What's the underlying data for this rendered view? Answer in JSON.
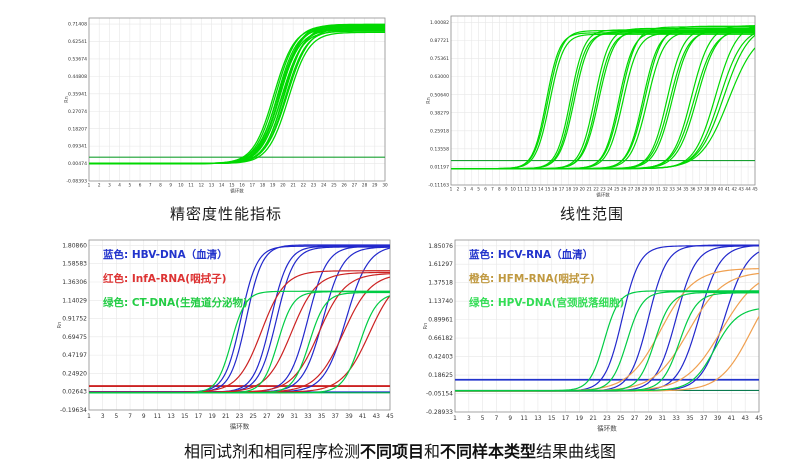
{
  "figure": {
    "caption_parts": [
      {
        "text": "相同试剂和相同程序检测",
        "bold": false
      },
      {
        "text": "不同项目",
        "bold": true
      },
      {
        "text": "和",
        "bold": false
      },
      {
        "text": "不同样本类型",
        "bold": true
      },
      {
        "text": "结果曲线图",
        "bold": false
      }
    ]
  },
  "chart_data": [
    {
      "type": "line",
      "title": "精密度性能指标",
      "x_label": "循环数",
      "y_label": "Rn",
      "xlim": [
        1,
        30
      ],
      "ylim": [
        -0.084,
        0.745
      ],
      "x_ticks": {
        "min": 1,
        "max": 30,
        "label_step": 1,
        "grid_step": 1
      },
      "y_ticks": [
        "0.71408",
        "0.62541",
        "0.53674",
        "0.44808",
        "0.35941",
        "0.27074",
        "0.18207",
        "0.09341",
        "0.00474",
        "-0.08393"
      ],
      "curve_color": "#00d800",
      "hlines": [
        {
          "y": 0.037,
          "color": "#18a030",
          "w": 1.1
        }
      ],
      "series": [
        {
          "color": "#00d800",
          "baseline": 0.005,
          "width": 1.3,
          "curves": [
            [
              19.1,
              0.7,
              1.0
            ],
            [
              19.3,
              0.709,
              1.0
            ],
            [
              19.45,
              0.692,
              1.05
            ],
            [
              19.55,
              0.703,
              0.95
            ],
            [
              19.65,
              0.685,
              1.0
            ],
            [
              19.7,
              0.713,
              1.0
            ],
            [
              19.75,
              0.707,
              1.0
            ],
            [
              19.85,
              0.678,
              1.0
            ],
            [
              19.95,
              0.7,
              0.95
            ],
            [
              20.05,
              0.69,
              1.05
            ],
            [
              20.15,
              0.706,
              1.0
            ],
            [
              20.25,
              0.682,
              1.0
            ],
            [
              20.4,
              0.696,
              0.95
            ],
            [
              20.55,
              0.672,
              1.0
            ]
          ]
        }
      ]
    },
    {
      "type": "line",
      "title": "线性范围",
      "x_label": "循环数",
      "y_label": "Rn",
      "xlim": [
        1,
        45
      ],
      "ylim": [
        -0.112,
        1.045
      ],
      "x_ticks": {
        "min": 1,
        "max": 45,
        "label_step": 1,
        "grid_step": 1
      },
      "y_ticks": [
        "1.00082",
        "0.87721",
        "0.75361",
        "0.63000",
        "0.50640",
        "0.38279",
        "0.25918",
        "0.13558",
        "0.01197",
        "-0.11163"
      ],
      "curve_color": "#00d800",
      "hlines": [
        {
          "y": 0.055,
          "color": "#18a030",
          "w": 1.1
        }
      ],
      "series": [
        {
          "color": "#00d800",
          "baseline": 0.0,
          "width": 1.2,
          "curves": [
            [
              14.8,
              0.93,
              1.05
            ],
            [
              15.05,
              0.945,
              1.0
            ],
            [
              15.3,
              0.92,
              1.0
            ],
            [
              18.3,
              0.95,
              1.0
            ],
            [
              18.55,
              0.93,
              1.0
            ],
            [
              18.85,
              0.94,
              0.95
            ],
            [
              21.8,
              0.96,
              0.95
            ],
            [
              22.1,
              0.935,
              0.95
            ],
            [
              22.4,
              0.95,
              0.9
            ],
            [
              25.3,
              0.94,
              0.95
            ],
            [
              25.6,
              0.97,
              0.9
            ],
            [
              25.9,
              0.93,
              0.9
            ],
            [
              28.8,
              0.95,
              0.9
            ],
            [
              29.1,
              0.975,
              0.85
            ],
            [
              29.45,
              0.94,
              0.85
            ],
            [
              32.3,
              0.96,
              0.85
            ],
            [
              32.7,
              0.945,
              0.8
            ],
            [
              33.05,
              0.955,
              0.8
            ],
            [
              35.8,
              0.98,
              0.75
            ],
            [
              36.2,
              0.95,
              0.7
            ],
            [
              36.6,
              0.965,
              0.7
            ],
            [
              39.3,
              1.0,
              0.65
            ],
            [
              39.9,
              0.97,
              0.6
            ],
            [
              40.5,
              0.99,
              0.55
            ],
            [
              41.2,
              0.95,
              0.5
            ]
          ]
        }
      ]
    },
    {
      "type": "line",
      "title": "",
      "x_label": "循环数",
      "y_label": "Rn",
      "xlim": [
        1,
        45
      ],
      "ylim": [
        -0.197,
        1.875
      ],
      "x_ticks": {
        "min": 1,
        "max": 45,
        "label_step": 2,
        "grid_step": 2
      },
      "y_ticks": [
        "1.80860",
        "1.58583",
        "1.36306",
        "1.14029",
        "0.91752",
        "0.69475",
        "0.47197",
        "0.24920",
        "0.02643",
        "-0.19634"
      ],
      "hlines": [
        {
          "y": 0.095,
          "color": "#cc2222",
          "w": 1.8
        },
        {
          "y": 0.022,
          "color": "#2233cc",
          "w": 1.2
        },
        {
          "y": 0.012,
          "color": "#00bb44",
          "w": 1.1
        }
      ],
      "legend": [
        {
          "label": "蓝色: HBV-DNA（血清）",
          "color": "#2233cc"
        },
        {
          "label": "红色: InfA-RNA(咽拭子)",
          "color": "#dd3333"
        },
        {
          "label": "绿色: CT-DNA(生殖道分泌物)",
          "color": "#22cc44"
        }
      ],
      "series": [
        {
          "name": "HBV-DNA（血清）",
          "color": "#2228cc",
          "baseline": 0.022,
          "width": 1.2,
          "curves": [
            [
              23.2,
              1.8,
              0.85
            ],
            [
              24.0,
              1.815,
              0.85
            ],
            [
              27.6,
              1.8,
              0.8
            ],
            [
              28.4,
              1.79,
              0.78
            ],
            [
              33.0,
              1.8,
              0.72
            ],
            [
              35.2,
              1.79,
              0.68
            ],
            [
              38.6,
              1.81,
              0.62
            ]
          ]
        },
        {
          "name": "InfA-RNA(咽拭子)",
          "color": "#cc2222",
          "baseline": 0.02,
          "width": 1.2,
          "curves": [
            [
              26.2,
              1.5,
              0.58
            ],
            [
              30.6,
              1.48,
              0.55
            ],
            [
              34.6,
              1.47,
              0.52
            ],
            [
              38.2,
              1.47,
              0.5
            ],
            [
              42.0,
              1.46,
              0.5
            ]
          ]
        },
        {
          "name": "CT-DNA(生殖道分泌物)",
          "color": "#00cc44",
          "baseline": 0.012,
          "width": 1.2,
          "curves": [
            [
              21.8,
              1.25,
              0.95
            ],
            [
              28.6,
              1.245,
              0.9
            ],
            [
              33.2,
              1.235,
              0.85
            ],
            [
              40.6,
              1.23,
              0.8
            ]
          ]
        }
      ]
    },
    {
      "type": "line",
      "title": "",
      "x_label": "循环数",
      "y_label": "Rn",
      "xlim": [
        1,
        45
      ],
      "ylim": [
        -0.29,
        1.925
      ],
      "x_ticks": {
        "min": 1,
        "max": 45,
        "label_step": 2,
        "grid_step": 2
      },
      "y_ticks": [
        "1.85076",
        "1.61297",
        "1.37518",
        "1.13740",
        "0.89961",
        "0.66182",
        "0.42403",
        "0.18625",
        "-0.05154",
        "-0.28933"
      ],
      "hlines": [
        {
          "y": 0.125,
          "color": "#2233cc",
          "w": 1.8
        },
        {
          "y": -0.012,
          "color": "#0a7a50",
          "w": 1.2
        }
      ],
      "legend": [
        {
          "label": "蓝色: HCV-RNA（血清）",
          "color": "#2233cc"
        },
        {
          "label": "橙色: HFM-RNA(咽拭子)",
          "color": "#c09940"
        },
        {
          "label": "绿色: HPV-DNA(宫颈脱落细胞)",
          "color": "#33dd55"
        }
      ],
      "series": [
        {
          "name": "HCV-RNA（血清）",
          "color": "#2228cc",
          "baseline": -0.02,
          "width": 1.2,
          "curves": [
            [
              25.2,
              1.85,
              0.8
            ],
            [
              29.0,
              1.86,
              0.75
            ],
            [
              33.0,
              1.85,
              0.7
            ],
            [
              36.3,
              1.86,
              0.65
            ],
            [
              40.0,
              1.86,
              0.6
            ]
          ]
        },
        {
          "name": "HFM-RNA(咽拭子)",
          "color": "#f0a050",
          "baseline": -0.02,
          "width": 1.2,
          "curves": [
            [
              30.8,
              1.56,
              0.42
            ],
            [
              34.8,
              1.52,
              0.4
            ],
            [
              39.6,
              1.55,
              0.38
            ],
            [
              43.8,
              1.5,
              0.45
            ]
          ]
        },
        {
          "name": "HPV-DNA(宫颈脱落细胞)",
          "color": "#00cc44",
          "baseline": -0.015,
          "width": 1.2,
          "curves": [
            [
              22.6,
              1.27,
              0.95
            ],
            [
              25.9,
              1.26,
              0.9
            ],
            [
              29.9,
              1.25,
              0.85
            ],
            [
              33.5,
              1.245,
              0.8
            ],
            [
              38.6,
              1.06,
              0.6
            ]
          ]
        }
      ]
    }
  ]
}
